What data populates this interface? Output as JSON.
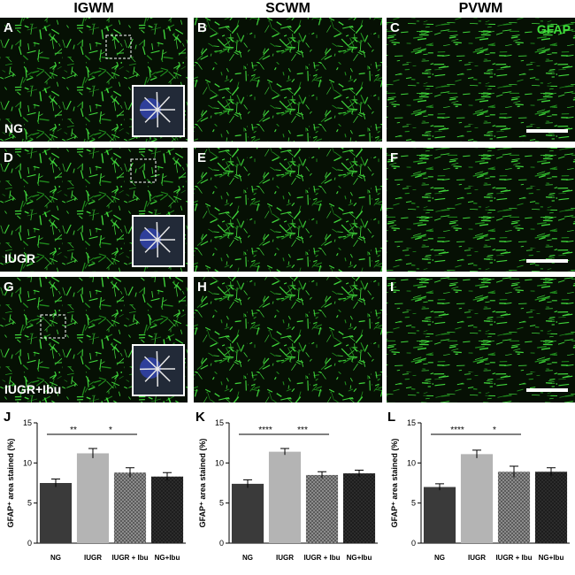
{
  "figure": {
    "columns": [
      "IGWM",
      "SCWM",
      "PVWM"
    ],
    "panels": [
      "A",
      "B",
      "C",
      "D",
      "E",
      "F",
      "G",
      "H",
      "I"
    ],
    "rows": [
      "NG",
      "IUGR",
      "IUGR+Ibu"
    ],
    "stain": "GFAP"
  },
  "chart_data": [
    {
      "type": "bar",
      "label": "J",
      "ylabel": "GFAP⁺ area stained (%)",
      "categories": [
        "NG",
        "IUGR",
        "IUGR + Ibu",
        "NG+Ibu"
      ],
      "values": [
        7.5,
        11.2,
        8.8,
        8.3
      ],
      "errors": [
        0.5,
        0.6,
        0.6,
        0.5
      ],
      "colors": [
        "#3a3a3a",
        "#b4b4b4",
        "#8c8c8c",
        "#2c2c2c"
      ],
      "checkered": [
        false,
        false,
        true,
        true
      ],
      "ylim": [
        0,
        15
      ],
      "yticks": [
        0,
        5,
        10,
        15
      ],
      "annotations": [
        "**",
        "*"
      ]
    },
    {
      "type": "bar",
      "label": "K",
      "ylabel": "GFAP⁺ area stained (%)",
      "categories": [
        "NG",
        "IUGR",
        "IUGR + Ibu",
        "NG+Ibu"
      ],
      "values": [
        7.4,
        11.4,
        8.5,
        8.7
      ],
      "errors": [
        0.5,
        0.4,
        0.4,
        0.4
      ],
      "colors": [
        "#3a3a3a",
        "#b4b4b4",
        "#8c8c8c",
        "#2c2c2c"
      ],
      "checkered": [
        false,
        false,
        true,
        true
      ],
      "ylim": [
        0,
        15
      ],
      "yticks": [
        0,
        5,
        10,
        15
      ],
      "annotations": [
        "****",
        "***"
      ]
    },
    {
      "type": "bar",
      "label": "L",
      "ylabel": "GFAP⁺ area stained (%)",
      "categories": [
        "NG",
        "IUGR",
        "IUGR + Ibu",
        "NG+Ibu"
      ],
      "values": [
        7.0,
        11.1,
        8.9,
        8.9
      ],
      "errors": [
        0.4,
        0.5,
        0.7,
        0.5
      ],
      "colors": [
        "#3a3a3a",
        "#b4b4b4",
        "#8c8c8c",
        "#2c2c2c"
      ],
      "checkered": [
        false,
        false,
        true,
        true
      ],
      "ylim": [
        0,
        15
      ],
      "yticks": [
        0,
        5,
        10,
        15
      ],
      "annotations": [
        "****",
        "*"
      ]
    }
  ]
}
